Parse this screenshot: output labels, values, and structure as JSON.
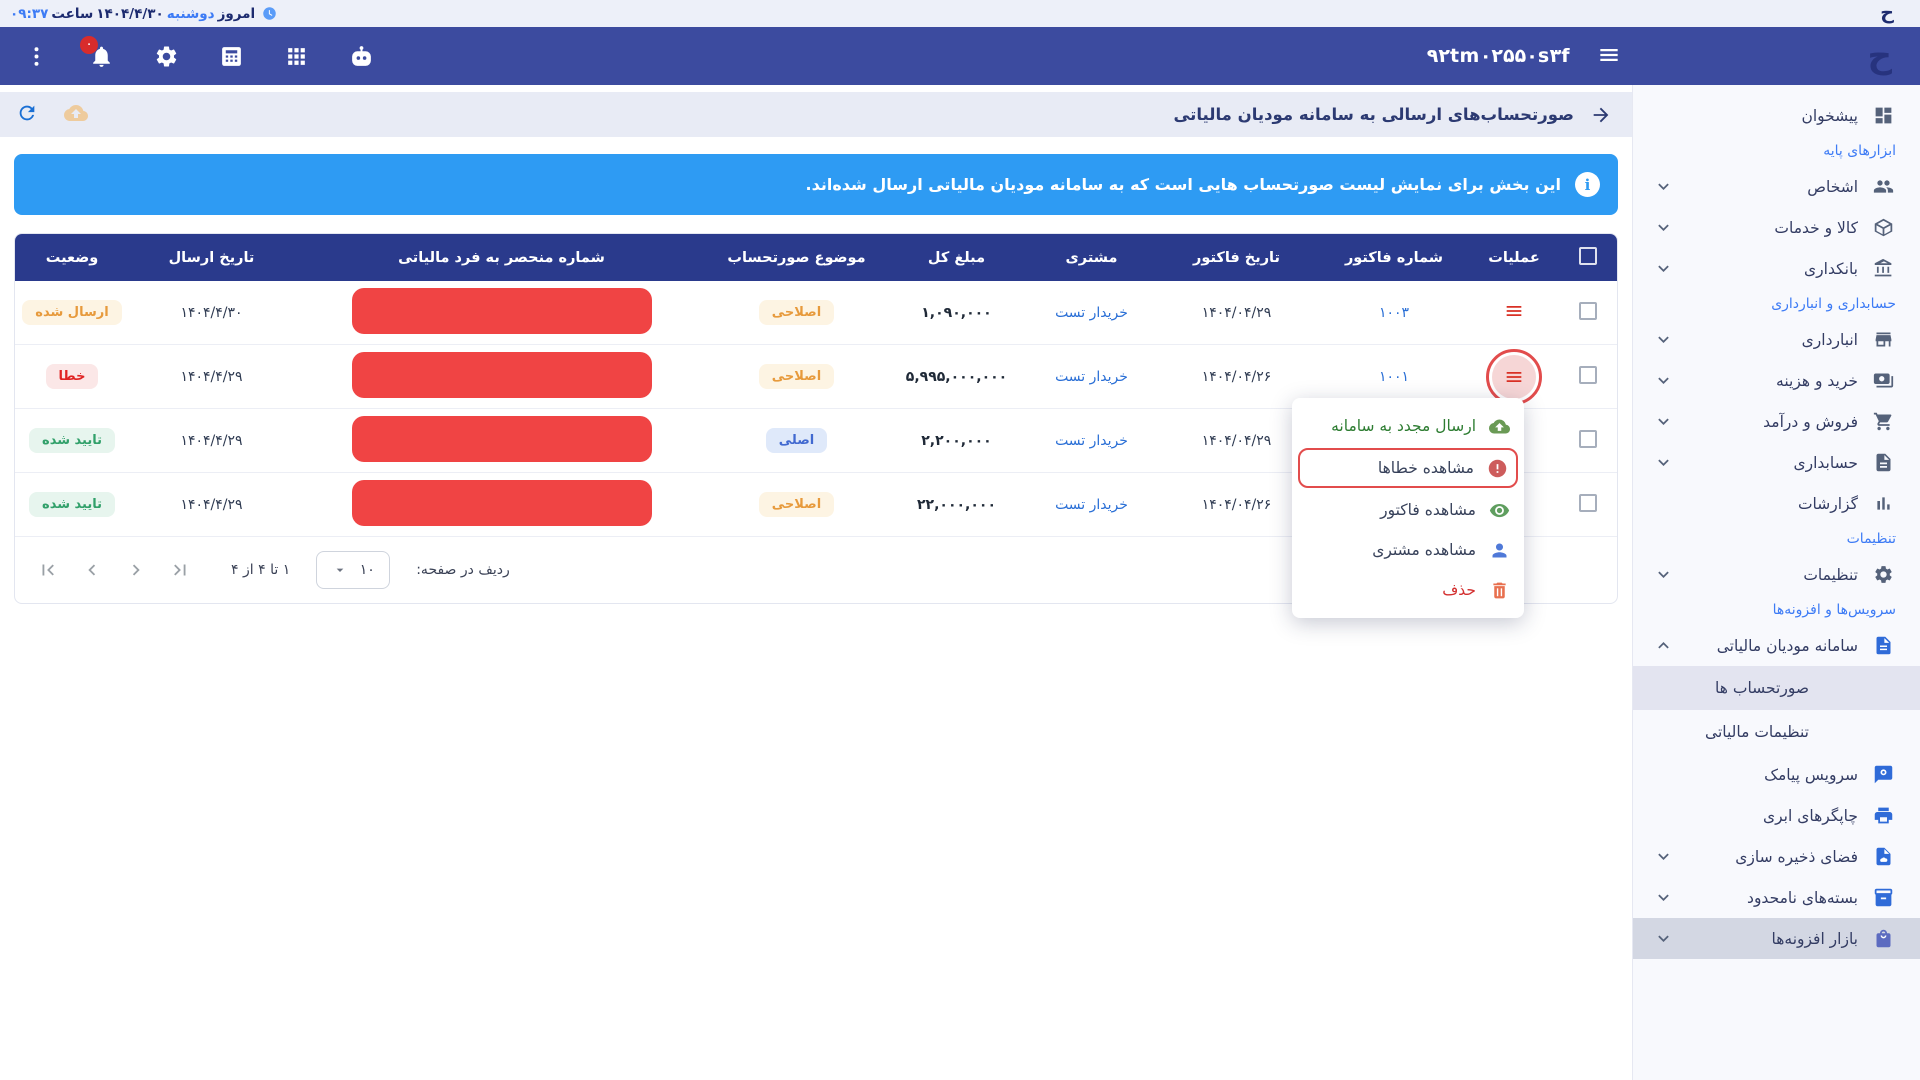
{
  "brand": {
    "logo": "ح"
  },
  "topbar": {
    "today_label": "امروز",
    "weekday": "دوشنبه",
    "date": "۱۴۰۴/۴/۳۰",
    "hour_label": "ساعت",
    "time": "۰۹:۳۷"
  },
  "navbar": {
    "business_id": "۹۲tm۰۲۵۵۰s۳f",
    "bell_badge": "۰",
    "icons": [
      "kebab-menu-icon",
      "bell-icon",
      "gear-icon",
      "calculator-icon",
      "apps-grid-icon",
      "robot-icon"
    ]
  },
  "page": {
    "title": "صورتحساب‌های ارسالی به سامانه مودیان مالیاتی"
  },
  "banner": {
    "text": "این بخش برای نمایش لیست صورتحساب هایی است که به سامانه مودیان مالیاتی ارسال شده‌اند."
  },
  "table": {
    "headers": [
      "عملیات",
      "شماره فاکتور",
      "تاریخ فاکتور",
      "مشتری",
      "مبلغ کل",
      "موضوع صورتحساب",
      "شماره منحصر به فرد مالیاتی",
      "تاریخ ارسال",
      "وضعیت"
    ],
    "rows": [
      {
        "invoice_no": "۱۰۰۳",
        "invoice_date": "۱۴۰۴/۰۴/۲۹",
        "customer": "خریدار تست",
        "total": "۱,۰۹۰,۰۰۰",
        "subject": "اصلاحی",
        "subject_style": "amber",
        "send_date": "۱۴۰۴/۴/۳۰",
        "status": "ارسال شده",
        "status_style": "amber",
        "action_highlight": false
      },
      {
        "invoice_no": "۱۰۰۱",
        "invoice_date": "۱۴۰۴/۰۴/۲۶",
        "customer": "خریدار تست",
        "total": "۵,۹۹۵,۰۰۰,۰۰۰",
        "subject": "اصلاحی",
        "subject_style": "amber",
        "send_date": "۱۴۰۴/۴/۲۹",
        "status": "خطا",
        "status_style": "red",
        "action_highlight": true
      },
      {
        "invoice_no": "",
        "invoice_date": "۱۴۰۴/۰۴/۲۹",
        "customer": "خریدار تست",
        "total": "۲,۲۰۰,۰۰۰",
        "subject": "اصلی",
        "subject_style": "blue",
        "send_date": "۱۴۰۴/۴/۲۹",
        "status": "تایید شده",
        "status_style": "green",
        "action_highlight": false
      },
      {
        "invoice_no": "",
        "invoice_date": "۱۴۰۴/۰۴/۲۶",
        "customer": "خریدار تست",
        "total": "۲۲,۰۰۰,۰۰۰",
        "subject": "اصلاحی",
        "subject_style": "amber",
        "send_date": "۱۴۰۴/۴/۲۹",
        "status": "تایید شده",
        "status_style": "green",
        "action_highlight": false
      }
    ]
  },
  "pagination": {
    "rows_label": "ردیف در صفحه:",
    "rows_value": "۱۰",
    "range": "۱ تا ۴ از ۴",
    "nav": [
      {
        "name": "last-page",
        "icon": "last-page"
      },
      {
        "name": "next-page",
        "icon": "chevron-right"
      },
      {
        "name": "prev-page",
        "icon": "chevron-left"
      },
      {
        "name": "first-page",
        "icon": "first-page"
      }
    ]
  },
  "context_menu": {
    "items": [
      {
        "label": "ارسال مجدد به سامانه",
        "icon": "cloud-upload",
        "icon_class": "g",
        "style": "green",
        "outlined": false
      },
      {
        "label": "مشاهده خطاها",
        "icon": "error",
        "icon_class": "err",
        "style": "",
        "outlined": true
      },
      {
        "label": "مشاهده فاکتور",
        "icon": "eye",
        "icon_class": "eye",
        "style": "",
        "outlined": false
      },
      {
        "label": "مشاهده مشتری",
        "icon": "person",
        "icon_class": "per",
        "style": "",
        "outlined": false
      },
      {
        "label": "حذف",
        "icon": "trash",
        "icon_class": "tr",
        "style": "red",
        "outlined": false
      }
    ]
  },
  "sidebar": {
    "entries": [
      {
        "type": "item",
        "label": "پیشخوان",
        "icon": "dashboard",
        "chevron": null,
        "tint": ""
      },
      {
        "type": "section",
        "label": "ابزارهای پایه"
      },
      {
        "type": "item",
        "label": "اشخاص",
        "icon": "people",
        "chevron": "down",
        "tint": ""
      },
      {
        "type": "item",
        "label": "کالا و خدمات",
        "icon": "package",
        "chevron": "down",
        "tint": ""
      },
      {
        "type": "item",
        "label": "بانکداری",
        "icon": "bank",
        "chevron": "down",
        "tint": ""
      },
      {
        "type": "section",
        "label": "حسابداری و انبارداری"
      },
      {
        "type": "item",
        "label": "انبارداری",
        "icon": "store",
        "chevron": "down",
        "tint": ""
      },
      {
        "type": "item",
        "label": "خرید و هزینه",
        "icon": "payments",
        "chevron": "down",
        "tint": ""
      },
      {
        "type": "item",
        "label": "فروش و درآمد",
        "icon": "cart",
        "chevron": "down",
        "tint": ""
      },
      {
        "type": "item",
        "label": "حسابداری",
        "icon": "ledger",
        "chevron": "down",
        "tint": ""
      },
      {
        "type": "item",
        "label": "گزارشات",
        "icon": "chart",
        "chevron": null,
        "tint": ""
      },
      {
        "type": "section",
        "label": "تنظیمات"
      },
      {
        "type": "item",
        "label": "تنظیمات",
        "icon": "gear",
        "chevron": "down",
        "tint": ""
      },
      {
        "type": "section",
        "label": "سرویس‌ها و افزونه‌ها"
      },
      {
        "type": "item",
        "label": "سامانه مودیان مالیاتی",
        "icon": "tax-doc",
        "chevron": "up",
        "tint": "blue"
      },
      {
        "type": "sub",
        "label": "صورتحساب ها",
        "selected": true
      },
      {
        "type": "sub",
        "label": "تنظیمات مالیاتی",
        "selected": false
      },
      {
        "type": "item",
        "label": "سرویس پیامک",
        "icon": "sms",
        "chevron": null,
        "tint": "blue"
      },
      {
        "type": "item",
        "label": "چاپگرهای ابری",
        "icon": "printer",
        "chevron": null,
        "tint": "blue"
      },
      {
        "type": "item",
        "label": "فضای ذخیره سازی",
        "icon": "cloud-file",
        "chevron": "down",
        "tint": "blue"
      },
      {
        "type": "item",
        "label": "بسته‌های نامحدود",
        "icon": "box",
        "chevron": "down",
        "tint": "blue"
      },
      {
        "type": "item",
        "label": "بازار افزونه‌ها",
        "icon": "bag",
        "chevron": "down",
        "tint": "purple",
        "market": true
      }
    ]
  }
}
